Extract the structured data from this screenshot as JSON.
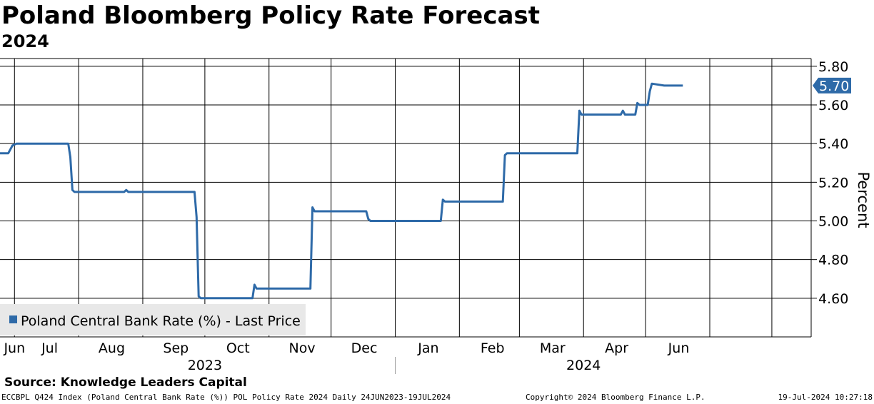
{
  "chart_data": {
    "type": "line",
    "title": "Poland Bloomberg Policy Rate Forecast",
    "subtitle": "2024",
    "ylabel": "Percent",
    "ylim": [
      4.4,
      5.84
    ],
    "yticks": [
      "5.80",
      "5.60",
      "5.40",
      "5.20",
      "5.00",
      "4.80",
      "4.60"
    ],
    "ytick_values": [
      5.8,
      5.6,
      5.4,
      5.2,
      5.0,
      4.8,
      4.6
    ],
    "xlim": [
      0,
      392
    ],
    "month_labels": [
      {
        "label": "Jun",
        "x": 7
      },
      {
        "label": "Jul",
        "x": 24
      },
      {
        "label": "Aug",
        "x": 54
      },
      {
        "label": "Sep",
        "x": 85
      },
      {
        "label": "Oct",
        "x": 115
      },
      {
        "label": "Nov",
        "x": 146
      },
      {
        "label": "Dec",
        "x": 176
      },
      {
        "label": "Jan",
        "x": 207
      },
      {
        "label": "Feb",
        "x": 238
      },
      {
        "label": "Mar",
        "x": 267
      },
      {
        "label": "Apr",
        "x": 298
      },
      {
        "label": "Jun",
        "x": 328
      }
    ],
    "grid_x": [
      7,
      38,
      69,
      99,
      130,
      160,
      191,
      222,
      251,
      282,
      312,
      343,
      373
    ],
    "year_labels": [
      {
        "label": "2023",
        "x": 99
      },
      {
        "label": "2024",
        "x": 282
      }
    ],
    "year_divider_x": 191,
    "last_value_label": "5.70",
    "last_value": 5.7,
    "series": [
      {
        "name": "Poland Central Bank Rate (%) - Last Price",
        "color": "#2e6aa8",
        "x": [
          0,
          4,
          6,
          8,
          33,
          34,
          35,
          36,
          60,
          61,
          62,
          94,
          95,
          96,
          97,
          122,
          123,
          124,
          125,
          150,
          151,
          152,
          177,
          178,
          179,
          180,
          213,
          214,
          215,
          216,
          243,
          244,
          245,
          246,
          279,
          280,
          281,
          282,
          300,
          301,
          302,
          307,
          308,
          309,
          313,
          314,
          315,
          321,
          322,
          323,
          324,
          325,
          326,
          330
        ],
        "values": [
          5.35,
          5.35,
          5.39,
          5.4,
          5.4,
          5.33,
          5.16,
          5.15,
          5.15,
          5.16,
          5.15,
          5.15,
          5.02,
          4.61,
          4.6,
          4.6,
          4.67,
          4.65,
          4.65,
          4.65,
          5.07,
          5.05,
          5.05,
          5.01,
          5.0,
          5.0,
          5.0,
          5.11,
          5.1,
          5.1,
          5.1,
          5.34,
          5.35,
          5.35,
          5.35,
          5.57,
          5.55,
          5.55,
          5.55,
          5.57,
          5.55,
          5.55,
          5.61,
          5.6,
          5.6,
          5.67,
          5.71,
          5.7,
          5.7,
          5.7,
          5.7,
          5.7,
          5.7,
          5.7
        ]
      }
    ],
    "legend_position": "bottom-left"
  },
  "footer": {
    "source": "Source: Knowledge Leaders Capital",
    "left": "ECCBPL Q424 Index (Poland Central Bank Rate (%)) POL Policy Rate 2024  Daily 24JUN2023-19JUL2024",
    "mid": "Copyright© 2024 Bloomberg Finance L.P.",
    "right": "19-Jul-2024 10:27:18"
  },
  "colors": {
    "line": "#2e6aa8",
    "grid": "#000000",
    "legend_bg": "#e8e8e8"
  }
}
